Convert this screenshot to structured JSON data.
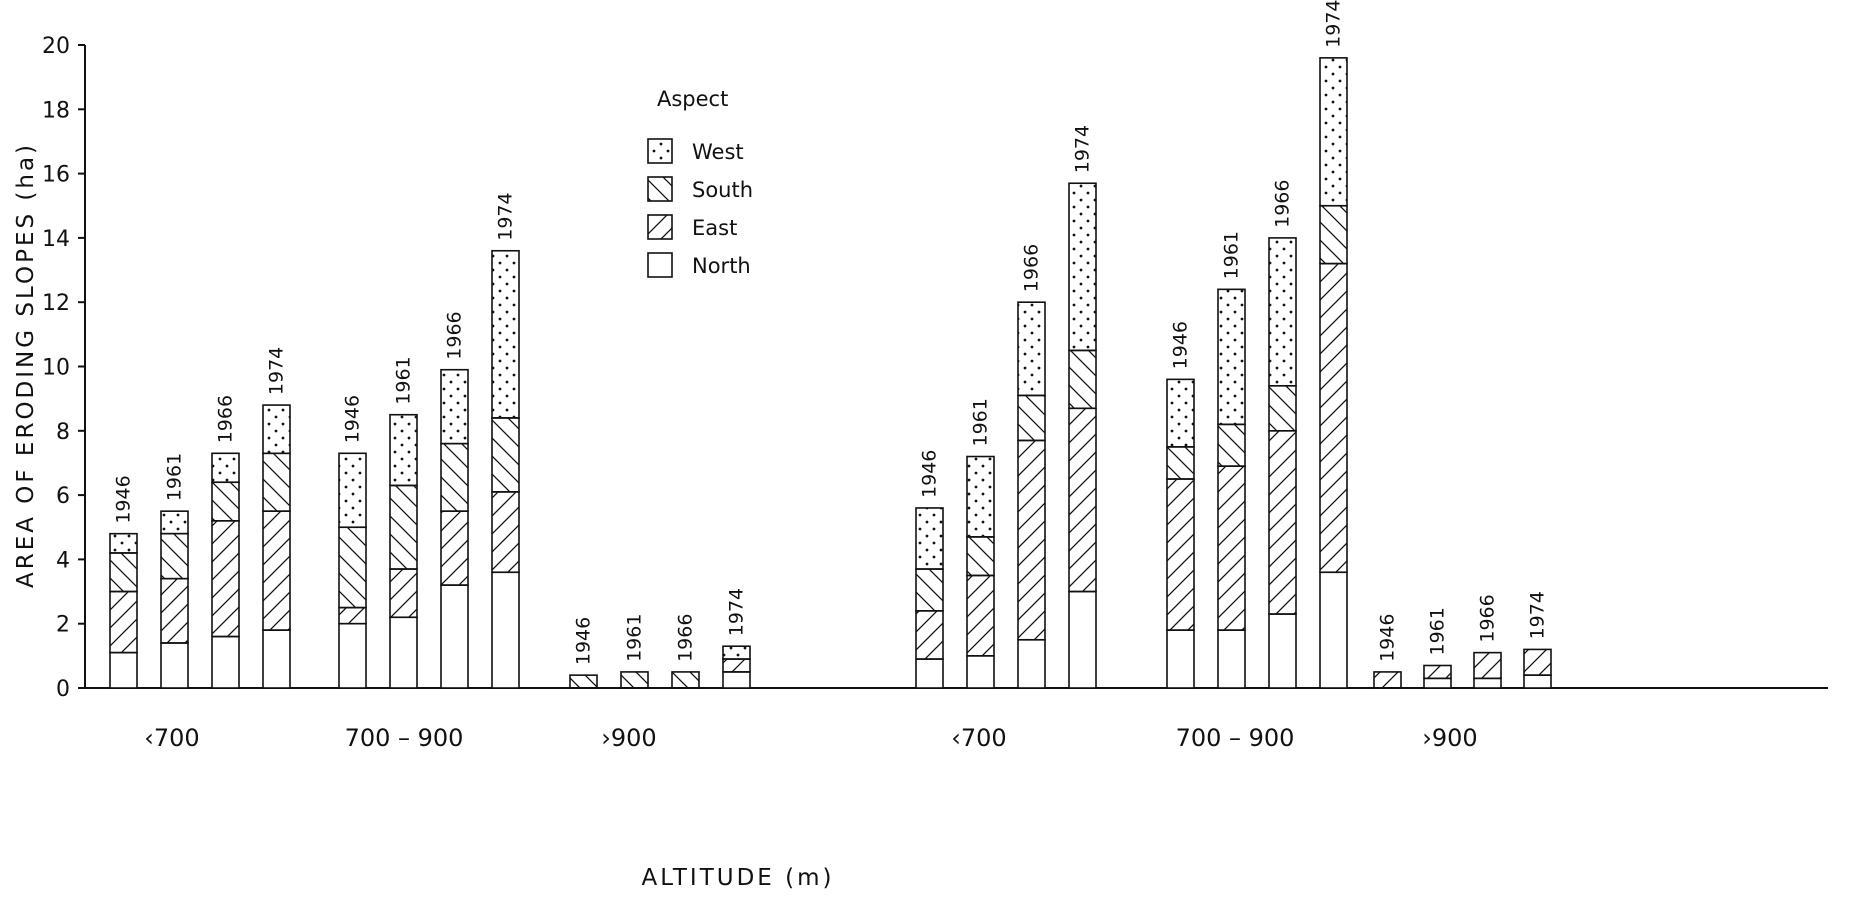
{
  "chart_data": {
    "type": "bar",
    "stacked": true,
    "xlabel": "ALTITUDE (m)",
    "ylabel": "AREA OF ERODING SLOPES (ha)",
    "ylim": [
      0,
      20
    ],
    "yticks": [
      0,
      2,
      4,
      6,
      8,
      10,
      12,
      14,
      16,
      18,
      20
    ],
    "grid": false,
    "legend": {
      "title": "Aspect",
      "placement": "top-center",
      "entries": [
        {
          "name": "West",
          "pattern": "dots"
        },
        {
          "name": "South",
          "pattern": "backslash-hatch"
        },
        {
          "name": "East",
          "pattern": "slash-hatch"
        },
        {
          "name": "North",
          "pattern": "empty"
        }
      ]
    },
    "stack_order": [
      "North",
      "East",
      "South",
      "West"
    ],
    "groups": [
      {
        "label": "‹700",
        "bars": [
          {
            "year": "1946",
            "North": 1.1,
            "East": 1.9,
            "South": 1.2,
            "West": 0.6
          },
          {
            "year": "1961",
            "North": 1.4,
            "East": 2.0,
            "South": 1.4,
            "West": 0.7
          },
          {
            "year": "1966",
            "North": 1.6,
            "East": 3.6,
            "South": 1.2,
            "West": 0.9
          },
          {
            "year": "1974",
            "North": 1.8,
            "East": 3.7,
            "South": 1.8,
            "West": 1.5
          }
        ]
      },
      {
        "label": "700 – 900",
        "bars": [
          {
            "year": "1946",
            "North": 2.0,
            "East": 0.5,
            "South": 2.5,
            "West": 2.3
          },
          {
            "year": "1961",
            "North": 2.2,
            "East": 1.5,
            "South": 2.6,
            "West": 2.2
          },
          {
            "year": "1966",
            "North": 3.2,
            "East": 2.3,
            "South": 2.1,
            "West": 2.3
          },
          {
            "year": "1974",
            "North": 3.6,
            "East": 2.5,
            "South": 2.3,
            "West": 5.2
          }
        ]
      },
      {
        "label": "›900",
        "bars": [
          {
            "year": "1946",
            "North": 0.0,
            "East": 0.0,
            "South": 0.4,
            "West": 0.0
          },
          {
            "year": "1961",
            "North": 0.0,
            "East": 0.0,
            "South": 0.5,
            "West": 0.0
          },
          {
            "year": "1966",
            "North": 0.0,
            "East": 0.0,
            "South": 0.5,
            "West": 0.0
          },
          {
            "year": "1974",
            "North": 0.5,
            "East": 0.4,
            "South": 0.0,
            "West": 0.4
          }
        ]
      },
      {
        "label": "‹700",
        "bars": [
          {
            "year": "1946",
            "North": 0.9,
            "East": 1.5,
            "South": 1.3,
            "West": 1.9
          },
          {
            "year": "1961",
            "North": 1.0,
            "East": 2.5,
            "South": 1.2,
            "West": 2.5
          },
          {
            "year": "1966",
            "North": 1.5,
            "East": 6.2,
            "South": 1.4,
            "West": 2.9
          },
          {
            "year": "1974",
            "North": 3.0,
            "East": 5.7,
            "South": 1.8,
            "West": 5.2
          }
        ]
      },
      {
        "label": "700 – 900",
        "bars": [
          {
            "year": "1946",
            "North": 1.8,
            "East": 4.7,
            "South": 1.0,
            "West": 2.1
          },
          {
            "year": "1961",
            "North": 1.8,
            "East": 5.1,
            "South": 1.3,
            "West": 4.2
          },
          {
            "year": "1966",
            "North": 2.3,
            "East": 5.7,
            "South": 1.4,
            "West": 4.6
          },
          {
            "year": "1974",
            "North": 3.6,
            "East": 9.6,
            "South": 1.8,
            "West": 4.6
          }
        ]
      },
      {
        "label": "›900",
        "bars": [
          {
            "year": "1946",
            "North": 0.0,
            "East": 0.5,
            "South": 0.0,
            "West": 0.0
          },
          {
            "year": "1961",
            "North": 0.3,
            "East": 0.4,
            "South": 0.0,
            "West": 0.0
          },
          {
            "year": "1966",
            "North": 0.3,
            "East": 0.8,
            "South": 0.0,
            "West": 0.0
          },
          {
            "year": "1974",
            "North": 0.4,
            "East": 0.8,
            "South": 0.0,
            "West": 0.0
          }
        ]
      }
    ]
  }
}
